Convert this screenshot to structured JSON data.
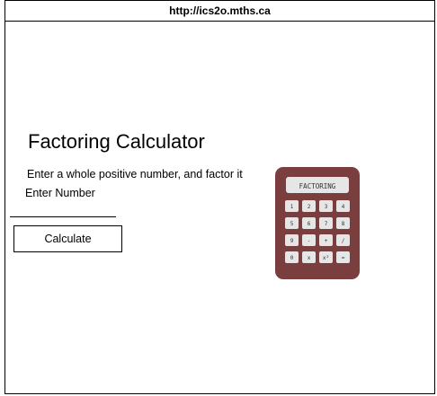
{
  "browser": {
    "url": "http://ics2o.mths.ca"
  },
  "main": {
    "title": "Factoring Calculator",
    "instruction": "Enter a whole positive number, and factor it",
    "input_label": "Enter Number",
    "input_value": "",
    "button_label": "Calculate"
  },
  "illustration": {
    "icon": "calculator-icon",
    "display_text": "FACTORING",
    "keys": [
      [
        "1",
        "2",
        "3",
        "4"
      ],
      [
        "5",
        "6",
        "7",
        "8"
      ],
      [
        "9",
        "-",
        "+",
        "/"
      ],
      [
        "0",
        "x",
        "x²",
        "="
      ]
    ],
    "colors": {
      "body": "#7b3e3e",
      "key": "#e6e6e6"
    }
  }
}
